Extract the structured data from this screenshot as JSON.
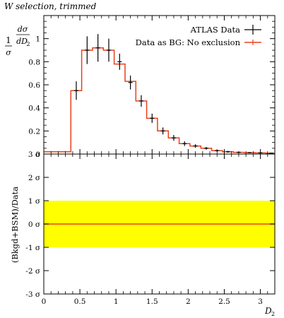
{
  "chart_data": [
    {
      "type": "line",
      "title": "W selection, trimmed",
      "ylabel": "1/σ dσ/dD₂",
      "xlim": [
        0,
        3.2
      ],
      "ylim": [
        0,
        1.2
      ],
      "yticks": [
        0,
        0.2,
        0.4,
        0.6,
        0.8,
        1
      ],
      "ytick_labels": [
        "0",
        "0.2",
        "0.4",
        "0.6",
        "0.8",
        "1"
      ],
      "legend": "top-right",
      "series": [
        {
          "name": "ATLAS Data",
          "style": "points-with-errors",
          "color": "#000000",
          "x": [
            0.45,
            0.6,
            0.75,
            0.9,
            1.05,
            1.2,
            1.35,
            1.5,
            1.65,
            1.8,
            1.95,
            2.1,
            2.25,
            2.4,
            2.55,
            2.7,
            2.85,
            3.0,
            3.15
          ],
          "y": [
            0.55,
            0.9,
            0.92,
            0.9,
            0.8,
            0.62,
            0.46,
            0.31,
            0.2,
            0.14,
            0.09,
            0.07,
            0.05,
            0.03,
            0.02,
            0.015,
            0.012,
            0.01,
            0.008
          ],
          "yerr": [
            0.08,
            0.12,
            0.12,
            0.1,
            0.07,
            0.06,
            0.05,
            0.04,
            0.03,
            0.025,
            0.02,
            0.015,
            0.012,
            0.01,
            0.008,
            0.006,
            0.005,
            0.004,
            0.003
          ]
        },
        {
          "name": "Data as BG: No exclusion",
          "style": "step",
          "color": "#e8401c",
          "edges": [
            0,
            0.3,
            0.375,
            0.525,
            0.675,
            0.825,
            0.975,
            1.125,
            1.275,
            1.425,
            1.575,
            1.725,
            1.875,
            2.025,
            2.175,
            2.325,
            2.475,
            2.625,
            2.775,
            2.925,
            3.075,
            3.2
          ],
          "values": [
            0.02,
            0.02,
            0.55,
            0.9,
            0.92,
            0.9,
            0.78,
            0.63,
            0.46,
            0.31,
            0.2,
            0.14,
            0.09,
            0.07,
            0.05,
            0.03,
            0.02,
            0.015,
            0.012,
            0.01,
            0.008
          ]
        }
      ]
    },
    {
      "type": "area",
      "xlabel": "D₂",
      "ylabel": "(Bkgd+BSM)/Data",
      "xlim": [
        0,
        3.2
      ],
      "ylim": [
        -3,
        3
      ],
      "xticks": [
        0,
        0.5,
        1,
        1.5,
        2,
        2.5,
        3
      ],
      "xtick_labels": [
        "0",
        "0.5",
        "1",
        "1.5",
        "2",
        "2.5",
        "3"
      ],
      "yticks": [
        -3,
        -2,
        -1,
        0,
        1,
        2,
        3
      ],
      "ytick_labels": [
        "-3 σ",
        "-2 σ",
        "-1 σ",
        "0 σ",
        "1 σ",
        "2 σ",
        "3 σ"
      ],
      "band": {
        "low": -1,
        "high": 1,
        "color": "#ffff00"
      },
      "line": {
        "y": 0,
        "color": "#e8401c"
      }
    }
  ]
}
